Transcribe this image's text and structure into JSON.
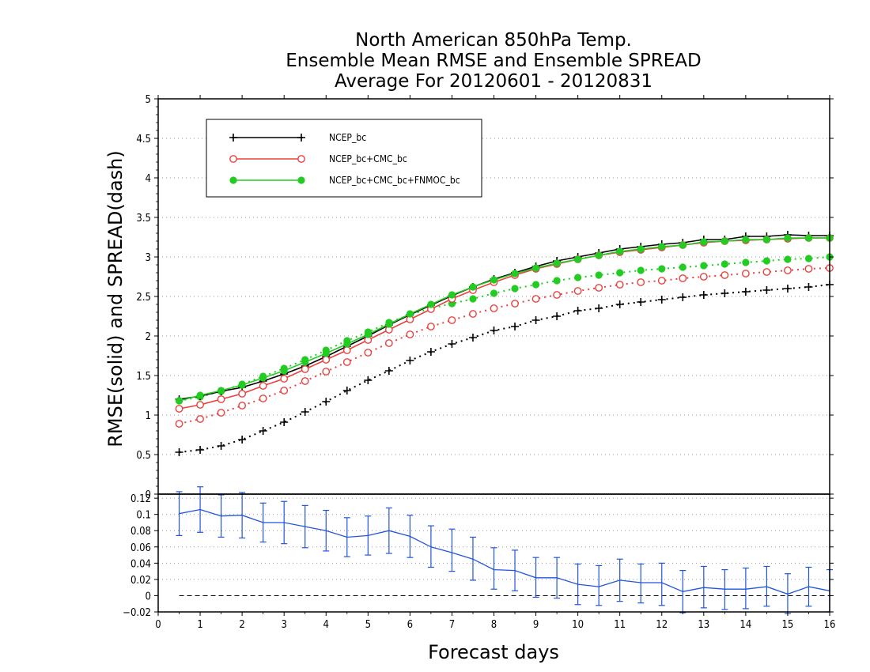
{
  "chart_data": [
    {
      "type": "line",
      "panel": "main",
      "title": [
        "North American 850hPa Temp.",
        "Ensemble Mean RMSE and Ensemble SPREAD",
        "Average For 20120601 - 20120831"
      ],
      "ylabel": "RMSE(solid) and SPREAD(dash)",
      "xlabel": "Forecast days",
      "xlim": [
        0,
        16
      ],
      "ylim": [
        0,
        5
      ],
      "yticks": [
        "0",
        "0.5",
        "1",
        "1.5",
        "2",
        "2.5",
        "3",
        "3.5",
        "4",
        "4.5",
        "5"
      ],
      "grid": "horizontal dotted",
      "legend_position": "top-left",
      "x": [
        0.5,
        1,
        1.5,
        2,
        2.5,
        3,
        3.5,
        4,
        4.5,
        5,
        5.5,
        6,
        6.5,
        7,
        7.5,
        8,
        8.5,
        9,
        9.5,
        10,
        10.5,
        11,
        11.5,
        12,
        12.5,
        13,
        13.5,
        14,
        14.5,
        15,
        15.5,
        16
      ],
      "series": [
        {
          "name": "NCEP_bc",
          "style": "solid",
          "marker": "plus",
          "color": "#000000",
          "values": [
            1.2,
            1.24,
            1.3,
            1.35,
            1.43,
            1.52,
            1.62,
            1.74,
            1.87,
            2.0,
            2.14,
            2.27,
            2.39,
            2.51,
            2.62,
            2.72,
            2.8,
            2.88,
            2.95,
            3.0,
            3.05,
            3.1,
            3.13,
            3.16,
            3.18,
            3.22,
            3.22,
            3.26,
            3.26,
            3.28,
            3.27,
            3.27
          ]
        },
        {
          "name": "NCEP_bc+CMC_bc",
          "style": "solid",
          "marker": "open-circle",
          "color": "#e8423f",
          "values": [
            1.08,
            1.13,
            1.2,
            1.27,
            1.37,
            1.46,
            1.58,
            1.7,
            1.82,
            1.95,
            2.08,
            2.21,
            2.34,
            2.47,
            2.58,
            2.68,
            2.77,
            2.85,
            2.91,
            2.97,
            3.02,
            3.06,
            3.09,
            3.12,
            3.15,
            3.18,
            3.2,
            3.21,
            3.22,
            3.23,
            3.24,
            3.24
          ]
        },
        {
          "name": "NCEP_bc+CMC_bc+FNMOC_bc",
          "style": "solid",
          "marker": "filled-circle",
          "color": "#22cc22",
          "values": [
            1.18,
            1.25,
            1.31,
            1.38,
            1.47,
            1.56,
            1.67,
            1.78,
            1.9,
            2.02,
            2.15,
            2.28,
            2.4,
            2.52,
            2.62,
            2.71,
            2.79,
            2.86,
            2.92,
            2.97,
            3.02,
            3.07,
            3.1,
            3.13,
            3.15,
            3.19,
            3.2,
            3.22,
            3.22,
            3.24,
            3.24,
            3.24
          ]
        },
        {
          "style": "dash",
          "marker": "plus",
          "color": "#000000",
          "values": [
            0.53,
            0.56,
            0.61,
            0.69,
            0.8,
            0.91,
            1.04,
            1.17,
            1.31,
            1.44,
            1.56,
            1.69,
            1.8,
            1.9,
            1.98,
            2.07,
            2.12,
            2.2,
            2.25,
            2.32,
            2.35,
            2.4,
            2.43,
            2.46,
            2.49,
            2.52,
            2.54,
            2.56,
            2.58,
            2.6,
            2.62,
            2.65
          ]
        },
        {
          "style": "dash",
          "marker": "open-circle",
          "color": "#e8423f",
          "values": [
            0.89,
            0.95,
            1.03,
            1.12,
            1.21,
            1.31,
            1.43,
            1.55,
            1.67,
            1.79,
            1.91,
            2.02,
            2.12,
            2.2,
            2.28,
            2.35,
            2.41,
            2.47,
            2.52,
            2.57,
            2.61,
            2.65,
            2.68,
            2.7,
            2.73,
            2.75,
            2.77,
            2.79,
            2.81,
            2.83,
            2.85,
            2.86
          ]
        },
        {
          "style": "dash",
          "marker": "filled-circle",
          "color": "#22cc22",
          "values": [
            1.18,
            1.23,
            1.3,
            1.39,
            1.49,
            1.59,
            1.7,
            1.82,
            1.94,
            2.05,
            2.17,
            2.27,
            2.35,
            2.41,
            2.47,
            2.54,
            2.6,
            2.65,
            2.7,
            2.74,
            2.77,
            2.8,
            2.83,
            2.85,
            2.87,
            2.89,
            2.91,
            2.93,
            2.95,
            2.97,
            2.98,
            3.0
          ]
        }
      ]
    },
    {
      "type": "line",
      "panel": "difference",
      "xlim": [
        0,
        16
      ],
      "ylim": [
        -0.02,
        0.125
      ],
      "yticks": [
        "−0.02",
        "0",
        "0.02",
        "0.04",
        "0.06",
        "0.08",
        "0.1",
        "0.12"
      ],
      "xticks": [
        "0",
        "1",
        "2",
        "3",
        "4",
        "5",
        "6",
        "7",
        "8",
        "9",
        "10",
        "11",
        "12",
        "13",
        "14",
        "15",
        "16"
      ],
      "grid": "horizontal dotted",
      "zero_line": "dashed",
      "color": "#2255dd",
      "x": [
        0.5,
        1,
        1.5,
        2,
        2.5,
        3,
        3.5,
        4,
        4.5,
        5,
        5.5,
        6,
        6.5,
        7,
        7.5,
        8,
        8.5,
        9,
        9.5,
        10,
        10.5,
        11,
        11.5,
        12,
        12.5,
        13,
        13.5,
        14,
        14.5,
        15,
        15.5,
        16
      ],
      "values": [
        0.101,
        0.106,
        0.098,
        0.099,
        0.09,
        0.09,
        0.085,
        0.08,
        0.072,
        0.074,
        0.08,
        0.073,
        0.06,
        0.053,
        0.045,
        0.032,
        0.031,
        0.022,
        0.022,
        0.014,
        0.011,
        0.019,
        0.016,
        0.016,
        0.005,
        0.01,
        0.008,
        0.008,
        0.011,
        0.002,
        0.011,
        0.006
      ],
      "error_low": [
        0.074,
        0.078,
        0.072,
        0.071,
        0.066,
        0.064,
        0.059,
        0.055,
        0.048,
        0.05,
        0.052,
        0.047,
        0.035,
        0.03,
        0.019,
        0.008,
        0.006,
        -0.002,
        -0.003,
        -0.011,
        -0.012,
        -0.007,
        -0.009,
        -0.012,
        -0.021,
        -0.015,
        -0.017,
        -0.016,
        -0.013,
        -0.022,
        -0.013,
        -0.02
      ],
      "error_high": [
        0.128,
        0.134,
        0.124,
        0.127,
        0.114,
        0.116,
        0.111,
        0.105,
        0.096,
        0.098,
        0.108,
        0.099,
        0.086,
        0.082,
        0.072,
        0.059,
        0.056,
        0.047,
        0.047,
        0.039,
        0.037,
        0.045,
        0.039,
        0.04,
        0.031,
        0.036,
        0.032,
        0.034,
        0.036,
        0.027,
        0.035,
        0.032
      ]
    }
  ]
}
